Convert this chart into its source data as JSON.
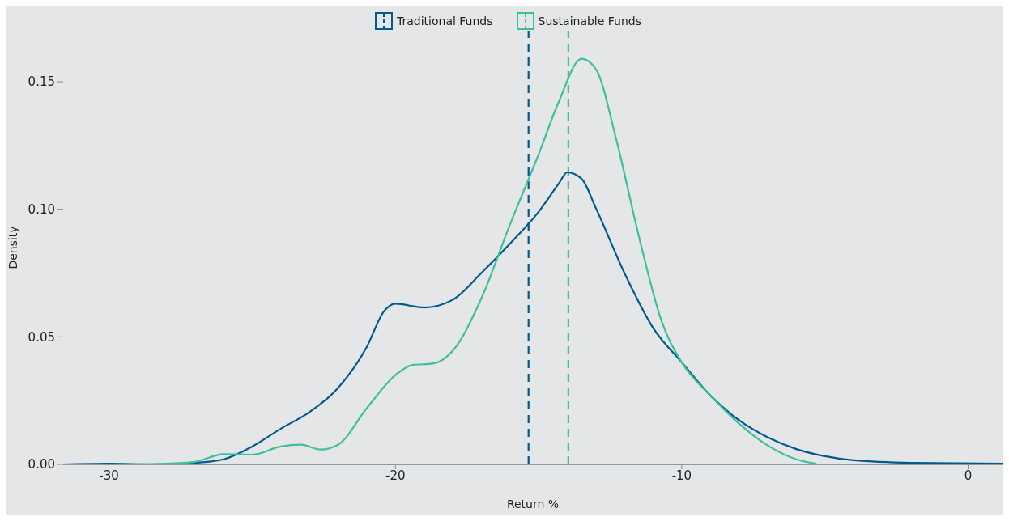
{
  "chart_data": {
    "type": "line",
    "xlabel": "Return %",
    "ylabel": "Density",
    "xlim": [
      -31.6,
      1.2
    ],
    "xticks": [
      -30,
      -20,
      -10,
      0
    ],
    "ylim": [
      0,
      0.17
    ],
    "yticks": [
      {
        "value": 0,
        "label": "0.00"
      },
      {
        "value": 0.05,
        "label": "0.05"
      },
      {
        "value": 0.1,
        "label": "0.10"
      },
      {
        "value": 0.15,
        "label": "0.15"
      }
    ],
    "grid": false,
    "legend": "top",
    "marker": "none",
    "line_style": "solid",
    "series": [
      {
        "name": "Traditional Funds",
        "color": "#005a8c",
        "x": [
          -31.6,
          -30,
          -28.5,
          -27,
          -26,
          -25,
          -24,
          -23,
          -22,
          -21,
          -20.4,
          -20,
          -19,
          -18,
          -17,
          -16,
          -15,
          -14.3,
          -14,
          -13.5,
          -13,
          -12,
          -11,
          -10,
          -9,
          -8,
          -7,
          -6,
          -5,
          -4,
          -2,
          1.2
        ],
        "values": [
          0,
          0.0003,
          0,
          0.0006,
          0.002,
          0.007,
          0.014,
          0.0205,
          0.03,
          0.046,
          0.06,
          0.063,
          0.0615,
          0.0645,
          0.075,
          0.0865,
          0.099,
          0.11,
          0.1145,
          0.112,
          0.1005,
          0.075,
          0.0535,
          0.04,
          0.027,
          0.0173,
          0.0106,
          0.006,
          0.0032,
          0.0016,
          0.0006,
          0.0003
        ]
      },
      {
        "name": "Sustainable Funds",
        "color": "#3dbf9a",
        "x": [
          -30,
          -28,
          -27,
          -26,
          -25,
          -24,
          -23.3,
          -22.6,
          -22,
          -21,
          -20,
          -19.4,
          -18.7,
          -18,
          -17,
          -16,
          -15,
          -14.3,
          -13.5,
          -13,
          -12.3,
          -11.5,
          -10.7,
          -10,
          -9,
          -8,
          -7,
          -6,
          -5.3
        ],
        "values": [
          0,
          0.0003,
          0.001,
          0.004,
          0.0038,
          0.007,
          0.0077,
          0.0058,
          0.0077,
          0.022,
          0.035,
          0.039,
          0.0395,
          0.0445,
          0.065,
          0.094,
          0.1215,
          0.142,
          0.159,
          0.155,
          0.128,
          0.0895,
          0.056,
          0.04,
          0.027,
          0.016,
          0.0074,
          0.002,
          0.0003
        ]
      }
    ],
    "ref_lines": [
      {
        "axis": "x",
        "value": -15.35,
        "color": "#005a8c",
        "line_style": "dashed"
      },
      {
        "axis": "x",
        "value": -13.96,
        "color": "#3dbf9a",
        "line_style": "dashed"
      }
    ]
  }
}
